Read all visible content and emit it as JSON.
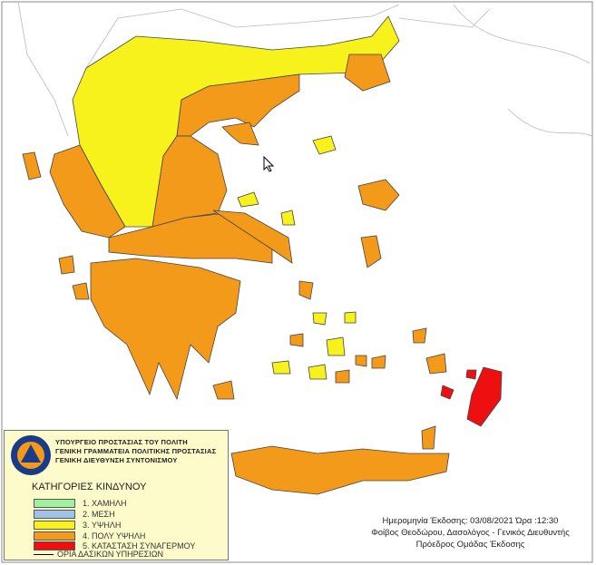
{
  "legend": {
    "logo_text": "ΠΟΛΙΤΙΚΗ ΠΡΟΣΤΑΣΙΑ ΕΛΛΑΔΑ",
    "ministry_lines": [
      "ΥΠΟΥΡΓΕΙΟ ΠΡΟΣΤΑΣΙΑΣ ΤΟΥ ΠΟΛΙΤΗ",
      "ΓΕΝΙΚΗ ΓΡΑΜΜΑΤΕΙΑ ΠΟΛΙΤΙΚΗΣ ΠΡΟΣΤΑΣΙΑΣ",
      "ΓΕΝΙΚΗ ΔΙΕΥΘΥΝΣΗ ΣΥΝΤΟΝΙΣΜΟΥ"
    ],
    "title": "ΚΑΤΗΓΟΡΙΕΣ ΚΙΝΔΥΝΟΥ",
    "categories": [
      {
        "label": "1. ΧΑΜΗΛΗ",
        "color": "#9ef0a0"
      },
      {
        "label": "2. ΜΕΣΗ",
        "color": "#9fc3e6"
      },
      {
        "label": "3. ΥΨΗΛΗ",
        "color": "#f7f21c"
      },
      {
        "label": "4. ΠΟΛΥ ΥΨΗΛΗ",
        "color": "#f39a1b"
      },
      {
        "label": "5. ΚΑΤΑΣΤΑΣΗ ΣΥΝΑΓΕΡΜΟΥ",
        "color": "#ee1010"
      }
    ],
    "border_label": "ΟΡΙΑ ΔΑΣΙΚΩΝ ΥΠΗΡΕΣΙΩΝ"
  },
  "issue": {
    "date_line": "Ημερομηνία Έκδοσης: 03/08/2021  Ώρα :12:30",
    "author_line": "Φοίβος Θεοδώρου, Δασολόγος - Γενικός Διευθυντής",
    "role_line": "Πρόεδρος Ομάδας Έκδοσης"
  }
}
